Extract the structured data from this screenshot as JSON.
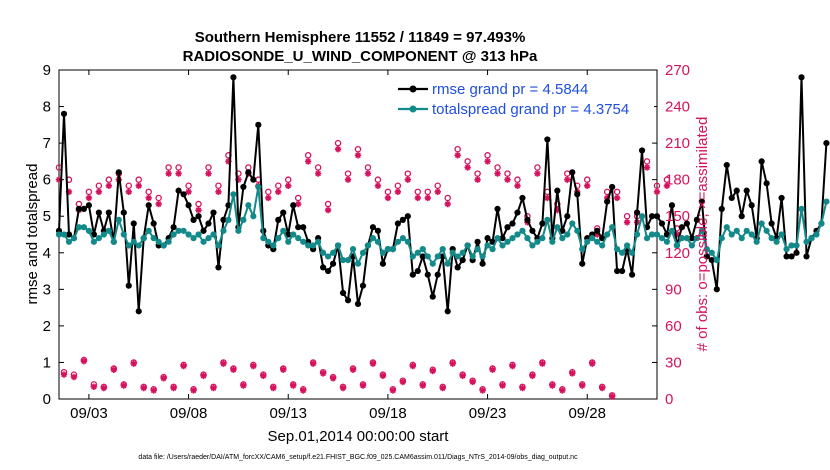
{
  "chart_data": {
    "type": "line",
    "title": [
      "Southern Hemisphere 11552 / 11849 = 97.493%",
      "RADIOSONDE_U_WIND_COMPONENT @ 313 hPa"
    ],
    "xlabel": "Sep.01,2014 00:00:00 start",
    "ylabel": "rmse and totalspread",
    "ylabel_right": "# of obs: o=possible; ×=assimilated",
    "footnote": "data file: /Users/raeder/DAI/ATM_forcXX/CAM6_setup/f.e21.FHIST_BGC.f09_025.CAM6assim.011/Diags_NTrS_2014-09/obs_diag_output.nc",
    "xlim": [
      1.5,
      31.5
    ],
    "ylim": [
      0,
      9
    ],
    "ylim_right": [
      0,
      270
    ],
    "x_ticks": [
      3,
      8,
      13,
      18,
      23,
      28
    ],
    "x_tick_labels": [
      "09/03",
      "09/08",
      "09/13",
      "09/18",
      "09/23",
      "09/28"
    ],
    "y_ticks": [
      0,
      1,
      2,
      3,
      4,
      5,
      6,
      7,
      8,
      9
    ],
    "y_tick_labels": [
      "0",
      "1",
      "2",
      "3",
      "4",
      "5",
      "6",
      "7",
      "8",
      "9"
    ],
    "y_right_ticks": [
      0,
      30,
      60,
      90,
      120,
      150,
      180,
      210,
      240,
      270
    ],
    "y_right_tick_labels": [
      "0",
      "30",
      "60",
      "90",
      "120",
      "150",
      "180",
      "210",
      "240",
      "270"
    ],
    "x_start": 1.5,
    "x_step": 0.25,
    "legend_location": "top-right",
    "colors": {
      "rmse": "#000000",
      "spread": "#138a8a",
      "obs": "#d6125e",
      "legend_text": "#1f4fe0"
    },
    "series": [
      {
        "name": "rmse grand pr = 4.5844",
        "values": [
          4.6,
          7.8,
          4.5,
          4.4,
          5.2,
          5.2,
          5.3,
          4.5,
          5.1,
          4.6,
          5.1,
          4.3,
          6.2,
          5.1,
          3.1,
          4.8,
          2.4,
          4.4,
          5.3,
          4.8,
          4.2,
          4.2,
          4.4,
          4.7,
          5.7,
          5.6,
          5.3,
          4.9,
          5.0,
          4.6,
          4.8,
          5.1,
          3.6,
          4.9,
          5.3,
          8.8,
          4.7,
          5.8,
          6.2,
          6.0,
          7.5,
          4.6,
          4.2,
          4.1,
          4.9,
          5.1,
          4.5,
          5.3,
          4.7,
          4.7,
          4.3,
          4.1,
          4.4,
          3.6,
          3.5,
          3.7,
          4.2,
          2.9,
          2.7,
          3.9,
          2.6,
          3.1,
          4.2,
          4.7,
          4.6,
          3.7,
          4.1,
          4.1,
          4.8,
          4.9,
          5.0,
          3.4,
          3.5,
          3.9,
          3.4,
          2.8,
          3.4,
          3.9,
          2.4,
          4.1,
          3.6,
          3.8,
          4.2,
          3.8,
          4.3,
          3.7,
          4.4,
          4.3,
          5.2,
          4.4,
          4.7,
          4.8,
          5.1,
          5.5,
          4.9,
          4.6,
          4.4,
          4.8,
          7.1,
          4.4,
          5.7,
          4.6,
          5.0,
          6.2,
          5.6,
          3.7,
          4.4,
          4.5,
          4.6,
          4.4,
          5.4,
          5.8,
          3.5,
          3.5,
          4.1,
          3.4,
          5.1,
          6.8,
          4.7,
          5.0,
          5.0,
          4.8,
          4.5,
          5.3,
          4.2,
          4.7,
          4.8,
          4.4,
          4.9,
          5.4,
          3.9,
          3.8,
          3.0,
          5.2,
          6.4,
          5.5,
          5.7,
          5.0,
          5.7,
          5.3,
          4.4,
          6.5,
          5.9,
          4.8,
          4.4,
          5.5,
          3.9,
          3.9,
          4.0,
          8.8,
          3.9,
          4.4,
          4.6,
          4.8,
          7.0
        ]
      },
      {
        "name": "totalspread grand pr = 4.3754",
        "values": [
          4.5,
          4.5,
          4.3,
          4.4,
          4.7,
          4.7,
          4.6,
          4.3,
          4.4,
          4.5,
          4.6,
          4.3,
          4.9,
          4.5,
          4.2,
          4.3,
          4.2,
          4.4,
          4.6,
          4.4,
          4.3,
          4.2,
          4.3,
          4.5,
          4.6,
          4.6,
          4.5,
          4.4,
          4.5,
          4.3,
          4.4,
          4.5,
          4.2,
          4.6,
          4.9,
          5.6,
          4.6,
          4.9,
          5.3,
          5.0,
          5.8,
          4.4,
          4.3,
          4.2,
          4.4,
          4.6,
          4.3,
          4.5,
          4.4,
          4.3,
          4.2,
          4.2,
          4.3,
          4.0,
          3.9,
          4.0,
          4.2,
          3.8,
          3.8,
          4.1,
          3.7,
          4.0,
          4.2,
          4.4,
          4.3,
          4.0,
          4.1,
          4.1,
          4.3,
          4.4,
          4.3,
          3.9,
          4.0,
          4.1,
          3.9,
          3.7,
          3.9,
          4.1,
          3.7,
          4.0,
          3.9,
          4.0,
          4.2,
          3.9,
          4.1,
          3.9,
          4.2,
          4.1,
          4.4,
          4.2,
          4.3,
          4.4,
          4.5,
          4.6,
          4.4,
          4.2,
          4.3,
          4.4,
          4.9,
          4.3,
          4.7,
          4.4,
          4.5,
          4.8,
          4.6,
          4.1,
          4.3,
          4.4,
          4.3,
          4.2,
          4.5,
          4.7,
          4.1,
          4.0,
          4.2,
          4.0,
          4.5,
          5.0,
          4.4,
          4.5,
          4.5,
          4.4,
          4.3,
          4.6,
          4.2,
          4.4,
          4.4,
          4.2,
          4.4,
          4.6,
          4.1,
          4.0,
          3.8,
          4.4,
          4.7,
          4.5,
          4.6,
          4.4,
          4.6,
          4.5,
          4.3,
          4.8,
          4.6,
          4.4,
          4.3,
          4.5,
          4.1,
          4.2,
          4.2,
          5.2,
          4.3,
          4.4,
          4.5,
          4.8,
          5.4
        ]
      }
    ],
    "obs_possible_0000": [
      190,
      180,
      160,
      170,
      175,
      180,
      185,
      175,
      180,
      170,
      165,
      190,
      190,
      175,
      160,
      190,
      175,
      200,
      185,
      190,
      180,
      170,
      175,
      180,
      165,
      200,
      190,
      160,
      210,
      185,
      205,
      190,
      180,
      170,
      175,
      185,
      170,
      170,
      175,
      165,
      205,
      195,
      185,
      200,
      190,
      185,
      180,
      150,
      190,
      170,
      160,
      185,
      175,
      180,
      140,
      170,
      170,
      150,
      150,
      195,
      175,
      180,
      140
    ],
    "obs_assimilated_0000": [
      180,
      170,
      155,
      165,
      170,
      175,
      180,
      170,
      175,
      165,
      160,
      185,
      185,
      170,
      155,
      185,
      170,
      195,
      180,
      185,
      175,
      165,
      170,
      175,
      160,
      195,
      185,
      155,
      205,
      180,
      200,
      185,
      175,
      165,
      170,
      180,
      165,
      165,
      170,
      160,
      200,
      190,
      180,
      195,
      185,
      180,
      175,
      145,
      185,
      165,
      155,
      180,
      170,
      175,
      135,
      165,
      165,
      145,
      145,
      190,
      170,
      175,
      135
    ],
    "obs_possible_1200": [
      22,
      20,
      32,
      12,
      10,
      25,
      12,
      30,
      10,
      8,
      18,
      10,
      28,
      8,
      20,
      10,
      30,
      25,
      12,
      28,
      20,
      10,
      25,
      12,
      8,
      30,
      22,
      18,
      10,
      25,
      12,
      30,
      20,
      8,
      15,
      28,
      12,
      24,
      10,
      30,
      20,
      15,
      8,
      25,
      12,
      28,
      10,
      20,
      30,
      12,
      8,
      22,
      12,
      30,
      10,
      3
    ],
    "obs_assimilated_1200": [
      20,
      18,
      31,
      10,
      9,
      24,
      11,
      29,
      9,
      7,
      17,
      9,
      27,
      7,
      19,
      9,
      29,
      24,
      11,
      27,
      19,
      9,
      24,
      11,
      7,
      29,
      21,
      17,
      9,
      24,
      11,
      29,
      19,
      7,
      14,
      27,
      11,
      23,
      9,
      29,
      19,
      14,
      7,
      24,
      11,
      27,
      9,
      19,
      29,
      11,
      7,
      21,
      11,
      29,
      9,
      2
    ]
  }
}
